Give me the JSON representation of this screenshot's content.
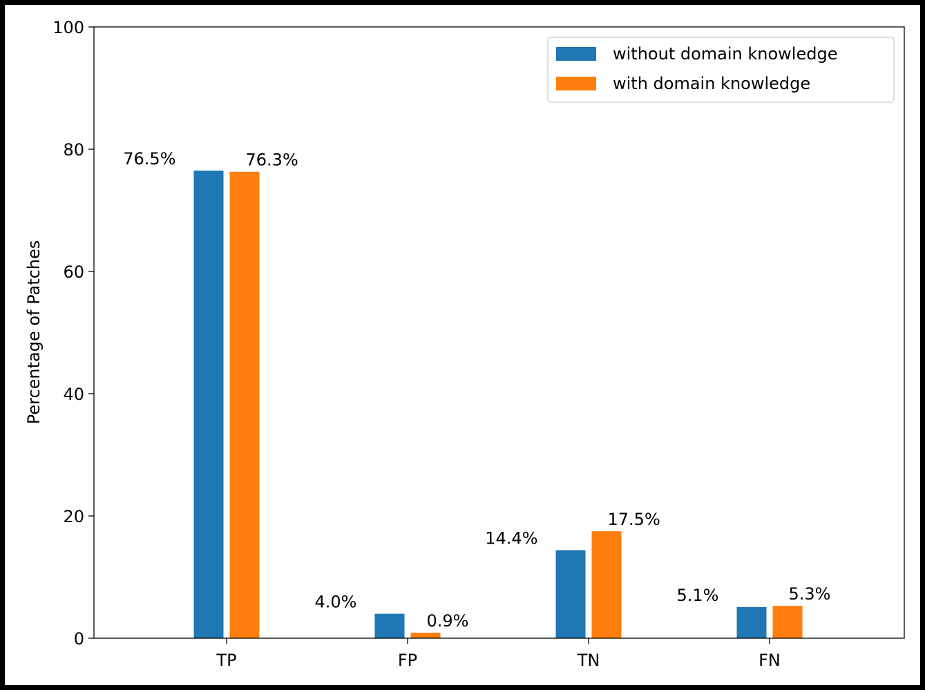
{
  "chart_data": {
    "type": "bar",
    "categories": [
      "TP",
      "FP",
      "TN",
      "FN"
    ],
    "series": [
      {
        "name": "without domain knowledge",
        "color": "#1f77b4",
        "values": [
          76.5,
          4.0,
          14.4,
          5.1
        ],
        "labels": [
          "76.5%",
          "4.0%",
          "14.4%",
          "5.1%"
        ]
      },
      {
        "name": "with domain knowledge",
        "color": "#ff7f0e",
        "values": [
          76.3,
          0.9,
          17.5,
          5.3
        ],
        "labels": [
          "76.3%",
          "0.9%",
          "17.5%",
          "5.3%"
        ]
      }
    ],
    "ylabel": "Percentage of Patches",
    "xlabel": "",
    "ylim": [
      0,
      100
    ],
    "yticks": [
      0,
      20,
      40,
      60,
      80,
      100
    ],
    "grid": false,
    "legend_position": "top-right"
  }
}
